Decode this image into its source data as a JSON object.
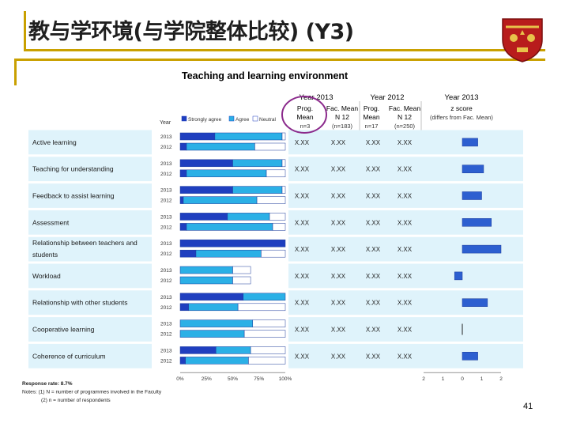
{
  "slide": {
    "title": "教与学环境(与学院整体比较) (Y3)",
    "page_number": "41"
  },
  "chart_data": {
    "type": "bar",
    "title": "Teaching and learning environment",
    "year_axis_label": "Year",
    "legend": [
      "Strongly agree",
      "Agree",
      "Neutral"
    ],
    "colors": {
      "strongly_agree": "#1f3fbf",
      "agree": "#2bb0e6",
      "neutral": "#ffffff",
      "row_band": "#dff3fb",
      "zscore_bar": "#2d5fd0",
      "highlight_circle": "#8b2a8c"
    },
    "x_ticks": [
      "0%",
      "25%",
      "50%",
      "75%",
      "100%"
    ],
    "z_ticks": [
      "2",
      "1",
      "0",
      "1",
      "2"
    ],
    "column_groups": [
      {
        "label": "Year 2013",
        "cols": [
          {
            "header": "Prog. Mean",
            "sub": "n=3"
          },
          {
            "header": "Fac. Mean N 12",
            "sub": "(n=183)"
          }
        ]
      },
      {
        "label": "Year 2012",
        "cols": [
          {
            "header": "Prog. Mean",
            "sub": "n=17"
          },
          {
            "header": "Fac. Mean N 12",
            "sub": "(n=250)"
          }
        ]
      },
      {
        "label": "Year 2013",
        "cols": [
          {
            "header": "z score",
            "sub": "(differs from Fac. Mean)"
          }
        ]
      }
    ],
    "categories": [
      {
        "name": "Active learning",
        "bars": [
          {
            "year": "2013",
            "sa": 33,
            "ag": 64,
            "ne": 3
          },
          {
            "year": "2012",
            "sa": 6,
            "ag": 65,
            "ne": 29
          }
        ],
        "values": [
          "X.XX",
          "X.XX",
          "X.XX",
          "X.XX"
        ],
        "z": 0.8
      },
      {
        "name": "Teaching for understanding",
        "bars": [
          {
            "year": "2013",
            "sa": 50,
            "ag": 47,
            "ne": 3
          },
          {
            "year": "2012",
            "sa": 6,
            "ag": 76,
            "ne": 18
          }
        ],
        "values": [
          "X.XX",
          "X.XX",
          "X.XX",
          "X.XX"
        ],
        "z": 1.1
      },
      {
        "name": "Feedback to assist learning",
        "bars": [
          {
            "year": "2013",
            "sa": 50,
            "ag": 47,
            "ne": 3
          },
          {
            "year": "2012",
            "sa": 3,
            "ag": 70,
            "ne": 27
          }
        ],
        "values": [
          "X.XX",
          "X.XX",
          "X.XX",
          "X.XX"
        ],
        "z": 1.0
      },
      {
        "name": "Assessment",
        "bars": [
          {
            "year": "2013",
            "sa": 45,
            "ag": 40,
            "ne": 15
          },
          {
            "year": "2012",
            "sa": 6,
            "ag": 82,
            "ne": 12
          }
        ],
        "values": [
          "X.XX",
          "X.XX",
          "X.XX",
          "X.XX"
        ],
        "z": 1.5
      },
      {
        "name": "Relationship between teachers and students",
        "bars": [
          {
            "year": "2013",
            "sa": 100,
            "ag": 0,
            "ne": 0
          },
          {
            "year": "2012",
            "sa": 15,
            "ag": 62,
            "ne": 23
          }
        ],
        "values": [
          "X.XX",
          "X.XX",
          "X.XX",
          "X.XX"
        ],
        "z": 2.0
      },
      {
        "name": "Workload",
        "bars": [
          {
            "year": "2013",
            "sa": 0,
            "ag": 50,
            "ne": 17
          },
          {
            "year": "2012",
            "sa": 0,
            "ag": 50,
            "ne": 17
          }
        ],
        "values": [
          "X.XX",
          "X.XX",
          "X.XX",
          "X.XX"
        ],
        "z": -0.4
      },
      {
        "name": "Relationship with other students",
        "bars": [
          {
            "year": "2013",
            "sa": 60,
            "ag": 40,
            "ne": 0
          },
          {
            "year": "2012",
            "sa": 8,
            "ag": 47,
            "ne": 45
          }
        ],
        "values": [
          "X.XX",
          "X.XX",
          "X.XX",
          "X.XX"
        ],
        "z": 1.3
      },
      {
        "name": "Cooperative learning",
        "bars": [
          {
            "year": "2013",
            "sa": 0,
            "ag": 69,
            "ne": 31
          },
          {
            "year": "2012",
            "sa": 0,
            "ag": 61,
            "ne": 39
          }
        ],
        "values": [
          "X.XX",
          "X.XX",
          "X.XX",
          "X.XX"
        ],
        "z": 0.0
      },
      {
        "name": "Coherence of curriculum",
        "bars": [
          {
            "year": "2013",
            "sa": 34,
            "ag": 33,
            "ne": 33
          },
          {
            "year": "2012",
            "sa": 5,
            "ag": 60,
            "ne": 35
          }
        ],
        "values": [
          "X.XX",
          "X.XX",
          "X.XX",
          "X.XX"
        ],
        "z": 0.8
      }
    ],
    "notes": [
      "Response rate: 8.7%",
      "Notes: (1) N = number of programmes involved in the Faculty",
      "(2) n = number of respondents"
    ]
  }
}
